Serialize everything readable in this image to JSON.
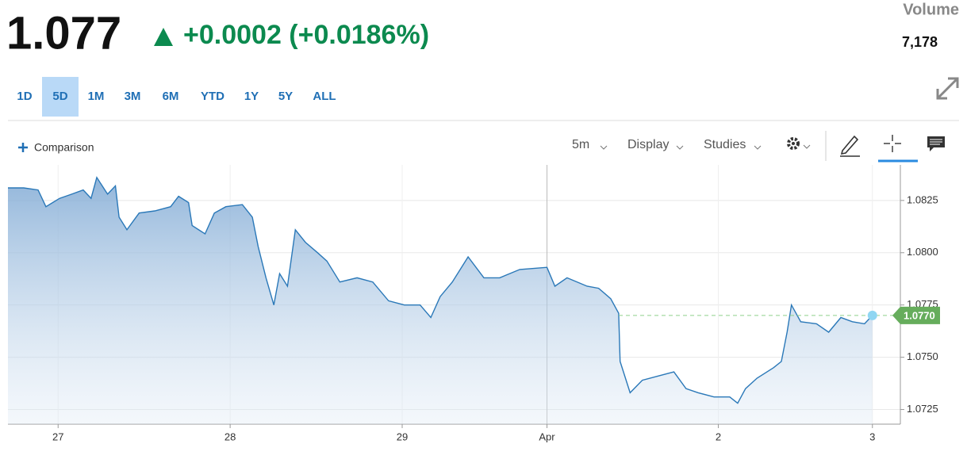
{
  "header": {
    "price": "1.077",
    "change": "+0.0002 (+0.0186%)",
    "volume_label": "Volume",
    "volume": "7,178"
  },
  "ranges": [
    "1D",
    "5D",
    "1M",
    "3M",
    "6M",
    "YTD",
    "1Y",
    "5Y",
    "ALL"
  ],
  "selected_range_index": 1,
  "toolbar": {
    "comparison": "Comparison",
    "interval": "5m",
    "display": "Display",
    "studies": "Studies"
  },
  "chart_data": {
    "type": "area",
    "color": "#2a78b8",
    "x": [
      -7.0,
      -4.8,
      -2.8,
      -1.7,
      0.2,
      1.9,
      3.5,
      4.6,
      5.4,
      6.9,
      8.0,
      8.5,
      9.6,
      11.3,
      13.5,
      15.7,
      16.8,
      18.2,
      18.7,
      20.5,
      21.8,
      23.4,
      25.7,
      27.1,
      27.9,
      29.0,
      30.1,
      30.9,
      32.0,
      33.1,
      34.5,
      36.2,
      37.5,
      39.3,
      41.7,
      43.9,
      46.1,
      48.3,
      50.5,
      52.0,
      53.3,
      55.0,
      57.2,
      59.4,
      61.6,
      64.4,
      68.2,
      69.3,
      71.0,
      73.8,
      75.4,
      77.1,
      78.2,
      78.4,
      79.8,
      81.5,
      83.7,
      85.9,
      87.6,
      89.3,
      91.5,
      93.7,
      94.8,
      95.9,
      97.5,
      99.8,
      100.9,
      101.7,
      102.3,
      103.6,
      105.8,
      107.5,
      109.2,
      110.8,
      112.5,
      113.6
    ],
    "values": [
      1.0831,
      1.0831,
      1.083,
      1.0822,
      1.0826,
      1.0828,
      1.083,
      1.0826,
      1.0836,
      1.0828,
      1.0832,
      1.0817,
      1.0811,
      1.0819,
      1.082,
      1.0822,
      1.0827,
      1.0824,
      1.0813,
      1.0809,
      1.0819,
      1.0822,
      1.0823,
      1.0817,
      1.0803,
      1.0788,
      1.0775,
      1.079,
      1.0784,
      1.0811,
      1.0805,
      1.08,
      1.0796,
      1.0786,
      1.0788,
      1.0786,
      1.0777,
      1.0775,
      1.0775,
      1.0769,
      1.0779,
      1.0786,
      1.0798,
      1.0788,
      1.0788,
      1.0792,
      1.0793,
      1.0784,
      1.0788,
      1.0784,
      1.0783,
      1.0778,
      1.0771,
      1.0748,
      1.0733,
      1.0739,
      1.0741,
      1.0743,
      1.0735,
      1.0733,
      1.0731,
      1.0731,
      1.0728,
      1.0735,
      1.074,
      1.0745,
      1.0748,
      1.0762,
      1.0775,
      1.0767,
      1.0766,
      1.0762,
      1.0769,
      1.0767,
      1.0766,
      1.077
    ],
    "xlim": [
      -7.0,
      117.5
    ],
    "xticks": [
      {
        "value": 0,
        "label": "27"
      },
      {
        "value": 24,
        "label": "28"
      },
      {
        "value": 48,
        "label": "29"
      },
      {
        "value": 68.2,
        "label": "Apr"
      },
      {
        "value": 92.1,
        "label": "2"
      },
      {
        "value": 113.6,
        "label": "3"
      }
    ],
    "ylim": [
      1.0718,
      1.0842
    ],
    "yticks": [
      1.0825,
      {
        "value": 1.08,
        "label": "1.0800"
      },
      1.0775,
      {
        "value": 1.075,
        "label": "1.0750"
      },
      1.0725
    ],
    "grid": true,
    "last_value": {
      "value": 1.077,
      "label": "1.0770"
    }
  }
}
